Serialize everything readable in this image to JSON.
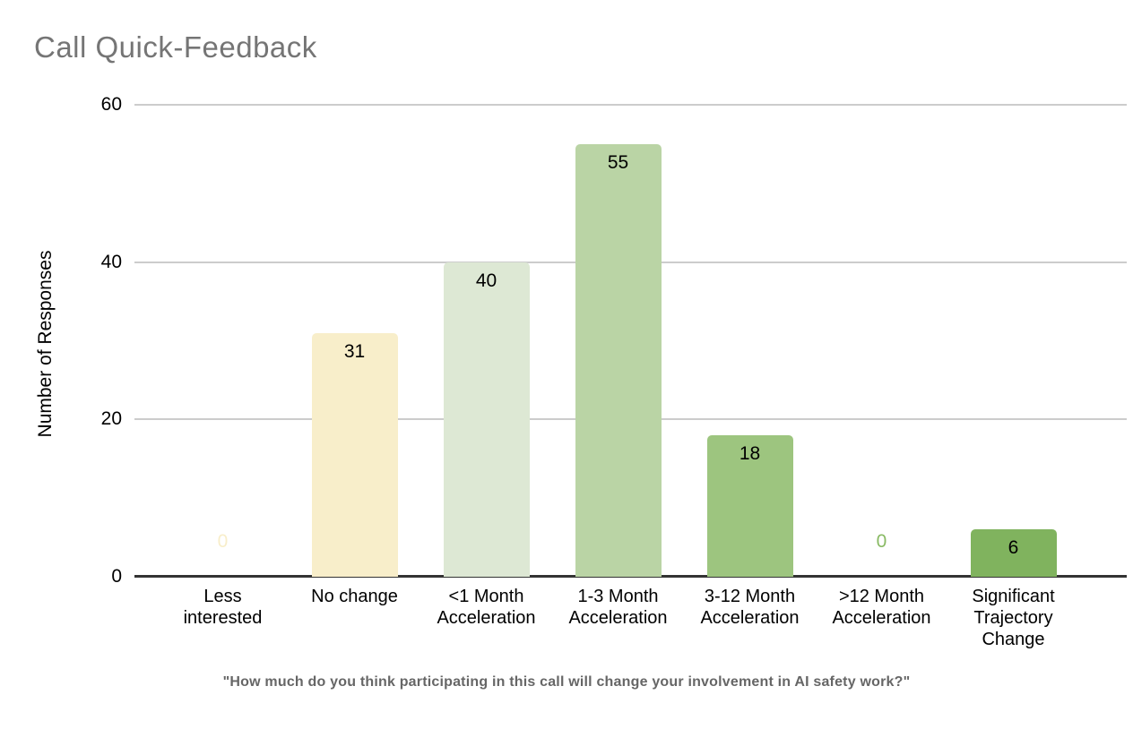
{
  "chart": {
    "title": "Call Quick-Feedback",
    "ylabel": "Number of Responses",
    "caption": "\"How much do you think participating in this call will change your involvement in AI safety work?\"",
    "title_color": "#757575",
    "caption_color": "#666666",
    "axis_text_color": "#000000",
    "gridline_color": "#cccccc",
    "baseline_color": "#333333",
    "background_color": "#ffffff"
  },
  "chart_data": {
    "type": "bar",
    "title": "Call Quick-Feedback",
    "xlabel": "",
    "ylabel": "Number of Responses",
    "subtitle": "\"How much do you think participating in this call will change your involvement in AI safety work?\"",
    "categories": [
      "Less interested",
      "No change",
      "<1 Month Acceleration",
      "1-3 Month Acceleration",
      "3-12 Month Acceleration",
      ">12 Month Acceleration",
      "Significant Trajectory Change"
    ],
    "values": [
      0,
      31,
      40,
      55,
      18,
      0,
      6
    ],
    "bar_colors": [
      "#f8eeca",
      "#f8eeca",
      "#dde8d4",
      "#bad4a5",
      "#9dc57f",
      "#89ba64",
      "#80b35e"
    ],
    "data_label_color": "#000000",
    "zero_label_uses_bar_color": true,
    "ylim": [
      0,
      60
    ],
    "yticks": [
      0,
      20,
      40,
      60
    ],
    "grid": true,
    "legend": "none",
    "bar_corner_radius_px": 5
  }
}
